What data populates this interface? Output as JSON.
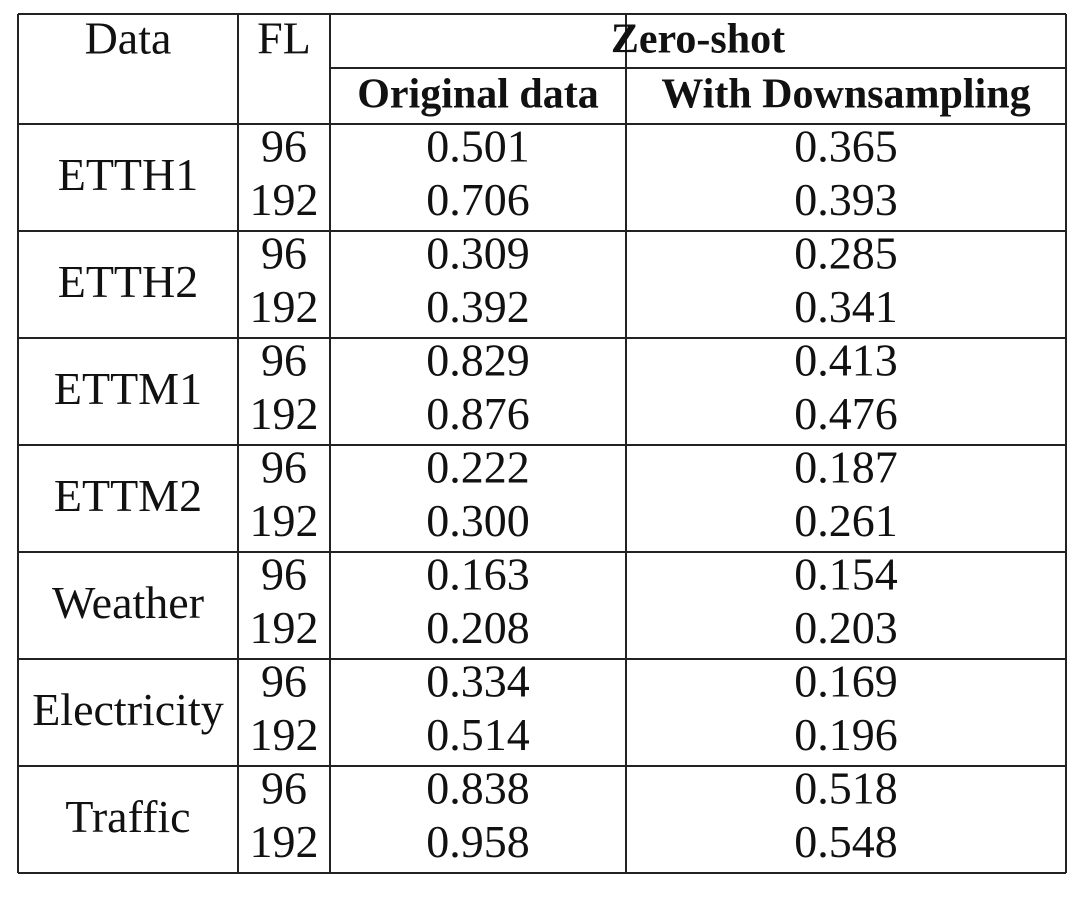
{
  "table": {
    "header": {
      "data": "Data",
      "fl": "FL",
      "group": "Zero-shot",
      "columns": [
        "Original data",
        "With Downsampling"
      ]
    },
    "groups": [
      {
        "name": "ETTH1",
        "rows": [
          {
            "fl": "96",
            "values": [
              "0.501",
              "0.365"
            ]
          },
          {
            "fl": "192",
            "values": [
              "0.706",
              "0.393"
            ]
          }
        ]
      },
      {
        "name": "ETTH2",
        "rows": [
          {
            "fl": "96",
            "values": [
              "0.309",
              "0.285"
            ]
          },
          {
            "fl": "192",
            "values": [
              "0.392",
              "0.341"
            ]
          }
        ]
      },
      {
        "name": "ETTM1",
        "rows": [
          {
            "fl": "96",
            "values": [
              "0.829",
              "0.413"
            ]
          },
          {
            "fl": "192",
            "values": [
              "0.876",
              "0.476"
            ]
          }
        ]
      },
      {
        "name": "ETTM2",
        "rows": [
          {
            "fl": "96",
            "values": [
              "0.222",
              "0.187"
            ]
          },
          {
            "fl": "192",
            "values": [
              "0.300",
              "0.261"
            ]
          }
        ]
      },
      {
        "name": "Weather",
        "rows": [
          {
            "fl": "96",
            "values": [
              "0.163",
              "0.154"
            ]
          },
          {
            "fl": "192",
            "values": [
              "0.208",
              "0.203"
            ]
          }
        ]
      },
      {
        "name": "Electricity",
        "rows": [
          {
            "fl": "96",
            "values": [
              "0.334",
              "0.169"
            ]
          },
          {
            "fl": "192",
            "values": [
              "0.514",
              "0.196"
            ]
          }
        ]
      },
      {
        "name": "Traffic",
        "rows": [
          {
            "fl": "96",
            "values": [
              "0.838",
              "0.518"
            ]
          },
          {
            "fl": "192",
            "values": [
              "0.958",
              "0.548"
            ]
          }
        ]
      }
    ]
  }
}
